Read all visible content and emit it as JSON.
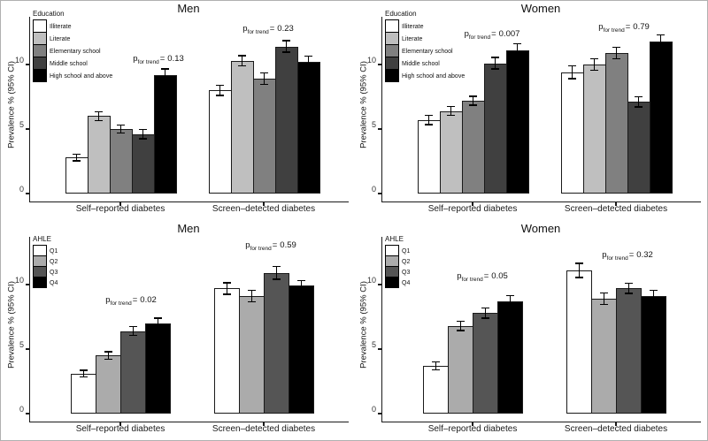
{
  "figure": {
    "p_prefix": "p",
    "p_sub": "for trend",
    "p_eq": "="
  },
  "chart_data": [
    {
      "type": "bar",
      "title": "Men",
      "legend_title": "Education",
      "legend_position": "top-left-inside",
      "ylabel": "Prevalence % (95% CI)",
      "ylim": [
        0,
        13.7
      ],
      "yticks": [
        0,
        5,
        10
      ],
      "grid": false,
      "categories": [
        "Self–reported diabetes",
        "Screen–detected diabetes"
      ],
      "series": [
        {
          "name": "Illiterate",
          "color": "#ffffff",
          "values": [
            2.8,
            8.0
          ],
          "errors": [
            0.25,
            0.4
          ]
        },
        {
          "name": "Literate",
          "color": "#bfbfbf",
          "values": [
            6.0,
            10.3
          ],
          "errors": [
            0.35,
            0.4
          ]
        },
        {
          "name": "Elementary school",
          "color": "#808080",
          "values": [
            5.0,
            8.9
          ],
          "errors": [
            0.3,
            0.45
          ]
        },
        {
          "name": "Middle school",
          "color": "#404040",
          "values": [
            4.6,
            11.4
          ],
          "errors": [
            0.35,
            0.45
          ]
        },
        {
          "name": "High school and above",
          "color": "#000000",
          "values": [
            9.2,
            10.2
          ],
          "errors": [
            0.45,
            0.45
          ]
        }
      ],
      "p_for_trend": [
        "0.13",
        "0.23"
      ]
    },
    {
      "type": "bar",
      "title": "Women",
      "legend_title": "Education",
      "legend_position": "top-left-inside",
      "ylabel": "Prevalence % (95% CI)",
      "ylim": [
        0,
        13.7
      ],
      "yticks": [
        0,
        5,
        10
      ],
      "grid": false,
      "categories": [
        "Self–reported diabetes",
        "Screen–detected diabetes"
      ],
      "series": [
        {
          "name": "Illiterate",
          "color": "#ffffff",
          "values": [
            5.7,
            9.4
          ],
          "errors": [
            0.35,
            0.5
          ]
        },
        {
          "name": "Literate",
          "color": "#bfbfbf",
          "values": [
            6.4,
            10.0
          ],
          "errors": [
            0.35,
            0.45
          ]
        },
        {
          "name": "Elementary school",
          "color": "#808080",
          "values": [
            7.2,
            10.9
          ],
          "errors": [
            0.35,
            0.45
          ]
        },
        {
          "name": "Middle school",
          "color": "#404040",
          "values": [
            10.1,
            7.1
          ],
          "errors": [
            0.45,
            0.4
          ]
        },
        {
          "name": "High school and above",
          "color": "#000000",
          "values": [
            11.1,
            11.8
          ],
          "errors": [
            0.5,
            0.5
          ]
        }
      ],
      "p_for_trend": [
        "0.007",
        "0.79"
      ]
    },
    {
      "type": "bar",
      "title": "Men",
      "legend_title": "AHLE",
      "legend_position": "top-left-inside",
      "ylabel": "Prevalence % (95% CI)",
      "ylim": [
        0,
        13.7
      ],
      "yticks": [
        0,
        5,
        10
      ],
      "grid": false,
      "categories": [
        "Self–reported diabetes",
        "Screen–detected diabetes"
      ],
      "series": [
        {
          "name": "Q1",
          "color": "#ffffff",
          "values": [
            3.1,
            9.7
          ],
          "errors": [
            0.25,
            0.45
          ]
        },
        {
          "name": "Q2",
          "color": "#ababab",
          "values": [
            4.5,
            9.1
          ],
          "errors": [
            0.3,
            0.45
          ]
        },
        {
          "name": "Q3",
          "color": "#555555",
          "values": [
            6.4,
            10.9
          ],
          "errors": [
            0.35,
            0.5
          ]
        },
        {
          "name": "Q4",
          "color": "#000000",
          "values": [
            7.0,
            9.9
          ],
          "errors": [
            0.4,
            0.4
          ]
        }
      ],
      "p_for_trend": [
        "0.02",
        "0.59"
      ]
    },
    {
      "type": "bar",
      "title": "Women",
      "legend_title": "AHLE",
      "legend_position": "top-left-inside",
      "ylabel": "Prevalence % (95% CI)",
      "ylim": [
        0,
        13.7
      ],
      "yticks": [
        0,
        5,
        10
      ],
      "grid": false,
      "categories": [
        "Self–reported diabetes",
        "Screen–detected diabetes"
      ],
      "series": [
        {
          "name": "Q1",
          "color": "#ffffff",
          "values": [
            3.7,
            11.1
          ],
          "errors": [
            0.3,
            0.55
          ]
        },
        {
          "name": "Q2",
          "color": "#ababab",
          "values": [
            6.8,
            8.9
          ],
          "errors": [
            0.35,
            0.45
          ]
        },
        {
          "name": "Q3",
          "color": "#555555",
          "values": [
            7.8,
            9.7
          ],
          "errors": [
            0.4,
            0.4
          ]
        },
        {
          "name": "Q4",
          "color": "#000000",
          "values": [
            8.7,
            9.1
          ],
          "errors": [
            0.45,
            0.45
          ]
        }
      ],
      "p_for_trend": [
        "0.05",
        "0.32"
      ]
    }
  ]
}
